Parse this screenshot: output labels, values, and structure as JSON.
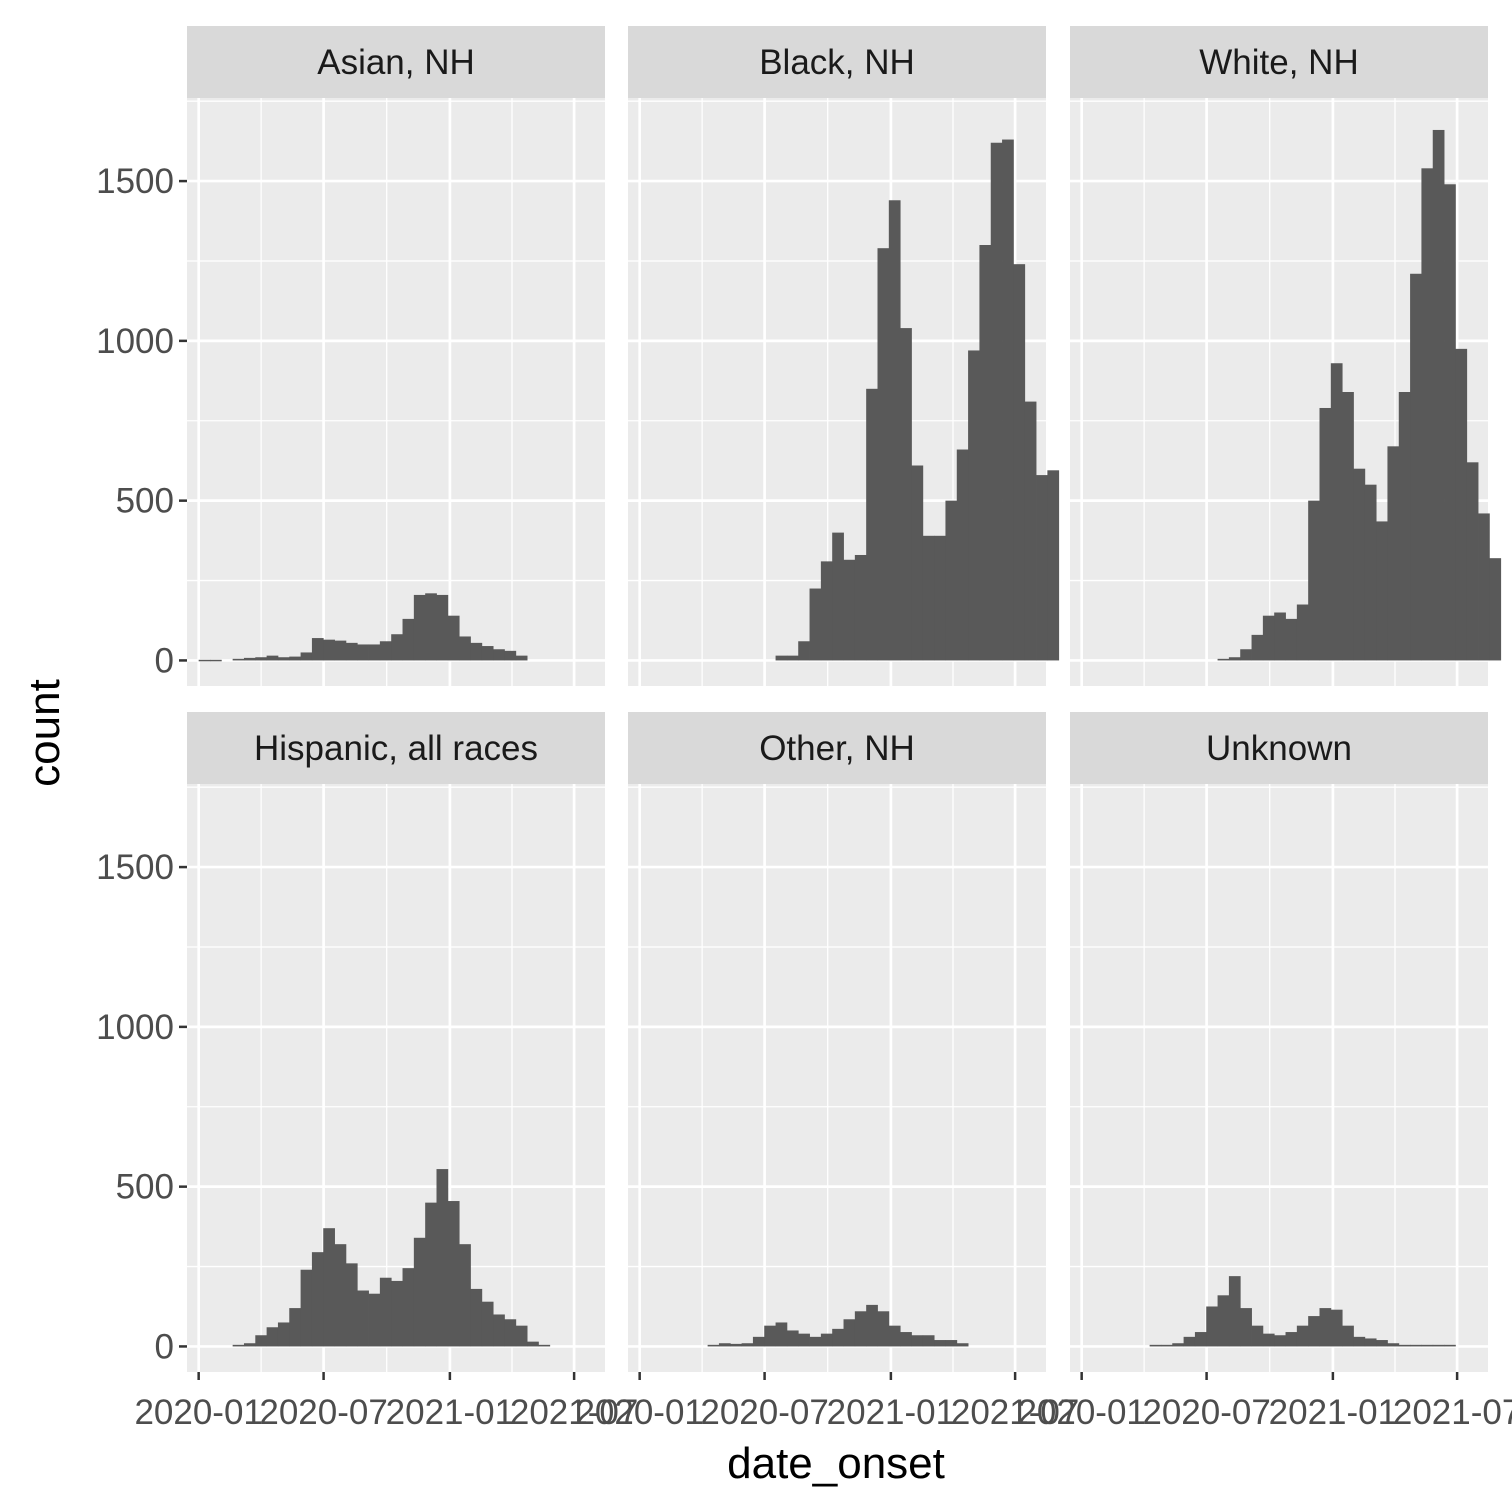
{
  "chart_data": {
    "type": "bar",
    "xlabel": "date_onset",
    "ylabel": "count",
    "ylim": [
      -80,
      1760
    ],
    "y_ticks": [
      0,
      500,
      1000,
      1500
    ],
    "y_tick_labels": [
      "0",
      "500",
      "1000",
      "1500"
    ],
    "x_ticks": [
      "2020-01",
      "2020-07",
      "2021-01",
      "2021-07"
    ],
    "x_tick_labels": [
      "2020-01",
      "2020-07",
      "2021-01",
      "2021-07"
    ],
    "xlim": [
      "2019-12-15",
      "2021-08-15"
    ],
    "bins": [
      "2020-01",
      "2020-01",
      "2020-02",
      "2020-02",
      "2020-03",
      "2020-03",
      "2020-04",
      "2020-04",
      "2020-05",
      "2020-05",
      "2020-06",
      "2020-06",
      "2020-07",
      "2020-07",
      "2020-08",
      "2020-08",
      "2020-09",
      "2020-09",
      "2020-10",
      "2020-10",
      "2020-11",
      "2020-11",
      "2020-12",
      "2020-12",
      "2021-01",
      "2021-01",
      "2021-02",
      "2021-02",
      "2021-03",
      "2021-03",
      "2021-04",
      "2021-04",
      "2021-05",
      "2021-05",
      "2021-06",
      "2021-06",
      "2021-07"
    ],
    "bin_start": "2020-01-01",
    "bin_width_days": 16.5,
    "grid": true,
    "colors": {
      "bar": "#595959",
      "panel": "#ebebeb",
      "strip": "#d9d9d9",
      "grid": "#ffffff"
    },
    "facets": [
      {
        "name": "Asian, NH",
        "values": [
          2,
          2,
          0,
          5,
          8,
          10,
          15,
          10,
          12,
          25,
          70,
          65,
          62,
          55,
          50,
          50,
          60,
          82,
          130,
          205,
          210,
          205,
          140,
          75,
          55,
          45,
          35,
          30,
          15,
          0,
          0,
          0,
          0,
          0,
          0,
          0,
          0
        ]
      },
      {
        "name": "Black, NH",
        "values": [
          0,
          0,
          0,
          0,
          0,
          0,
          0,
          0,
          0,
          0,
          0,
          0,
          15,
          15,
          60,
          225,
          310,
          400,
          315,
          330,
          850,
          1290,
          1440,
          1040,
          610,
          390,
          390,
          500,
          660,
          970,
          1300,
          1620,
          1630,
          1240,
          810,
          580,
          595
        ]
      },
      {
        "name": "White, NH",
        "values": [
          0,
          0,
          0,
          0,
          0,
          0,
          0,
          0,
          0,
          0,
          0,
          0,
          5,
          10,
          35,
          80,
          140,
          150,
          130,
          175,
          500,
          790,
          930,
          840,
          600,
          550,
          435,
          670,
          840,
          1210,
          1540,
          1660,
          1490,
          975,
          620,
          460,
          320
        ]
      },
      {
        "name": "Hispanic, all races",
        "values": [
          0,
          0,
          0,
          5,
          10,
          35,
          60,
          75,
          120,
          240,
          295,
          370,
          320,
          260,
          175,
          165,
          215,
          205,
          245,
          340,
          450,
          555,
          455,
          320,
          180,
          140,
          100,
          85,
          65,
          15,
          5,
          0,
          0,
          0,
          0,
          0,
          0
        ]
      },
      {
        "name": "Other, NH",
        "values": [
          0,
          0,
          0,
          0,
          0,
          0,
          5,
          10,
          8,
          10,
          30,
          65,
          75,
          50,
          40,
          30,
          40,
          55,
          85,
          110,
          130,
          110,
          65,
          45,
          35,
          35,
          20,
          20,
          10,
          0,
          0,
          0,
          0,
          0,
          0,
          0,
          0
        ]
      },
      {
        "name": "Unknown",
        "values": [
          0,
          0,
          0,
          0,
          0,
          0,
          5,
          5,
          10,
          30,
          45,
          125,
          160,
          220,
          120,
          65,
          40,
          35,
          45,
          65,
          95,
          120,
          115,
          65,
          30,
          25,
          20,
          10,
          5,
          5,
          5,
          5,
          5,
          0,
          0,
          0,
          0
        ]
      }
    ]
  }
}
